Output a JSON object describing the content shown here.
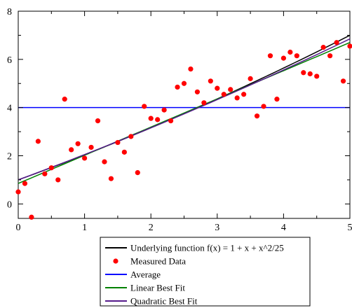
{
  "chart_data": {
    "type": "scatter",
    "xlim": [
      0,
      5
    ],
    "ylim": [
      -0.6,
      8
    ],
    "x_ticks": [
      0,
      1,
      2,
      3,
      4,
      5
    ],
    "x_tick_labels": [
      "0",
      "1",
      "2",
      "3",
      "4",
      "5"
    ],
    "y_ticks": [
      0,
      2,
      4,
      6,
      8
    ],
    "y_tick_labels": [
      "0",
      "2",
      "4",
      "6",
      "8"
    ],
    "grid": false,
    "legend_placement": "bottom-center",
    "series": [
      {
        "name": "Underlying function f(x) = 1 + x + x^2/25",
        "kind": "line",
        "color": "#000000",
        "function": {
          "a": 1,
          "b": 1,
          "c": 0.04
        }
      },
      {
        "name": "Measured Data",
        "kind": "points",
        "color": "#ff0000",
        "points": [
          [
            0.0,
            0.5
          ],
          [
            0.1,
            0.85
          ],
          [
            0.2,
            -0.55
          ],
          [
            0.3,
            2.6
          ],
          [
            0.4,
            1.25
          ],
          [
            0.5,
            1.5
          ],
          [
            0.6,
            1.0
          ],
          [
            0.7,
            4.35
          ],
          [
            0.8,
            2.25
          ],
          [
            0.9,
            2.5
          ],
          [
            1.0,
            1.9
          ],
          [
            1.1,
            2.35
          ],
          [
            1.2,
            3.45
          ],
          [
            1.3,
            1.75
          ],
          [
            1.4,
            1.05
          ],
          [
            1.5,
            2.55
          ],
          [
            1.6,
            2.15
          ],
          [
            1.7,
            2.8
          ],
          [
            1.8,
            1.3
          ],
          [
            1.9,
            4.05
          ],
          [
            2.0,
            3.55
          ],
          [
            2.1,
            3.5
          ],
          [
            2.2,
            3.9
          ],
          [
            2.3,
            3.45
          ],
          [
            2.4,
            4.85
          ],
          [
            2.5,
            5.0
          ],
          [
            2.6,
            5.6
          ],
          [
            2.7,
            4.65
          ],
          [
            2.8,
            4.2
          ],
          [
            2.9,
            5.1
          ],
          [
            3.0,
            4.8
          ],
          [
            3.1,
            4.55
          ],
          [
            3.2,
            4.75
          ],
          [
            3.3,
            4.4
          ],
          [
            3.4,
            4.55
          ],
          [
            3.5,
            5.2
          ],
          [
            3.6,
            3.65
          ],
          [
            3.7,
            4.05
          ],
          [
            3.8,
            6.15
          ],
          [
            3.9,
            4.35
          ],
          [
            4.0,
            6.05
          ],
          [
            4.1,
            6.3
          ],
          [
            4.2,
            6.15
          ],
          [
            4.3,
            5.45
          ],
          [
            4.4,
            5.4
          ],
          [
            4.5,
            5.3
          ],
          [
            4.6,
            6.5
          ],
          [
            4.7,
            6.15
          ],
          [
            4.8,
            6.7
          ],
          [
            4.9,
            5.1
          ],
          [
            5.0,
            6.55
          ]
        ]
      },
      {
        "name": "Average",
        "kind": "line",
        "color": "#0000ff",
        "function": {
          "a": 4.0,
          "b": 0,
          "c": 0
        }
      },
      {
        "name": "Linear Best Fit",
        "kind": "line",
        "color": "#008000",
        "function": {
          "a": 0.85,
          "b": 1.17,
          "c": 0
        }
      },
      {
        "name": "Quadratic Best Fit",
        "kind": "line",
        "color": "#551a8b",
        "function": {
          "a": 1.0,
          "b": 1.02,
          "c": 0.03
        }
      }
    ]
  }
}
